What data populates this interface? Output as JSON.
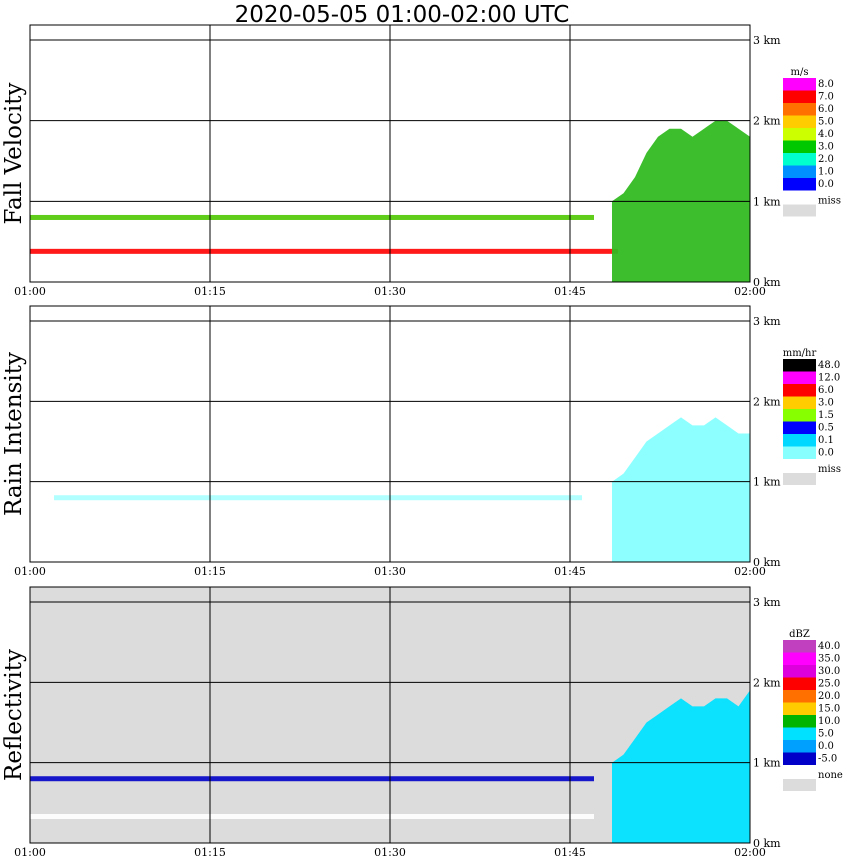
{
  "title": "2020-05-05   01:00-02:00 UTC",
  "x_ticks": [
    "01:00",
    "01:15",
    "01:30",
    "01:45",
    "02:00"
  ],
  "h_ticks": [
    "0 km",
    "1 km",
    "2 km",
    "3 km"
  ],
  "chart_data": [
    {
      "type": "heatmap",
      "ylabel": "Fall Velocity",
      "bg": "#ffffff",
      "legend": {
        "unit": "m/s",
        "labels": [
          "8.0",
          "7.0",
          "6.0",
          "5.0",
          "4.0",
          "3.0",
          "2.0",
          "1.0",
          "0.0"
        ],
        "colors": [
          "#ff00ff",
          "#ff0000",
          "#ff7000",
          "#ffcc00",
          "#ccff00",
          "#00c800",
          "#00ffcc",
          "#0090ff",
          "#0000ff"
        ],
        "miss_label": "miss",
        "miss_color": "#dcdcdc"
      },
      "features": [
        {
          "kind": "line",
          "y_km": 0.38,
          "x_start_min": 0,
          "x_end_min": 49,
          "color": "#ff0000"
        },
        {
          "kind": "line",
          "y_km": 0.8,
          "x_start_min": 0,
          "x_end_min": 47,
          "color": "#4ec800"
        },
        {
          "kind": "echo",
          "top_km": [
            1.0,
            1.1,
            1.3,
            1.6,
            1.8,
            1.9,
            1.9,
            1.8,
            1.9,
            2.0,
            2.0,
            1.9,
            1.8
          ],
          "x_start_min": 48.5,
          "x_end_min": 60,
          "color": "#33bb22"
        }
      ]
    },
    {
      "type": "heatmap",
      "ylabel": "Rain Intensity",
      "bg": "#ffffff",
      "legend": {
        "unit": "mm/hr",
        "labels": [
          "48.0",
          "12.0",
          "6.0",
          "3.0",
          "1.5",
          "0.5",
          "0.1",
          "0.0"
        ],
        "colors": [
          "#000000",
          "#ff00ff",
          "#ff0000",
          "#ffcc00",
          "#88ff00",
          "#0000ff",
          "#00d8ff",
          "#88ffff"
        ],
        "miss_label": "miss",
        "miss_color": "#dcdcdc"
      },
      "features": [
        {
          "kind": "line",
          "y_km": 0.8,
          "x_start_min": 2,
          "x_end_min": 46,
          "color": "#aaffff"
        },
        {
          "kind": "echo",
          "top_km": [
            1.0,
            1.1,
            1.3,
            1.5,
            1.6,
            1.7,
            1.8,
            1.7,
            1.7,
            1.8,
            1.7,
            1.6,
            1.6
          ],
          "x_start_min": 48.5,
          "x_end_min": 60,
          "color": "#88ffff"
        }
      ]
    },
    {
      "type": "heatmap",
      "ylabel": "Reflectivity",
      "bg": "#dcdcdc",
      "legend": {
        "unit": "dBZ",
        "labels": [
          "40.0",
          "35.0",
          "30.0",
          "25.0",
          "20.0",
          "15.0",
          "10.0",
          "5.0",
          "0.0",
          "-5.0"
        ],
        "colors": [
          "#c040c0",
          "#ff00ff",
          "#dd00dd",
          "#ff0000",
          "#ff7000",
          "#ffcc00",
          "#00b400",
          "#00e0ff",
          "#00a0ff",
          "#0000c8"
        ],
        "miss_label": "none",
        "miss_color": "#dcdcdc"
      },
      "features": [
        {
          "kind": "line",
          "y_km": 0.33,
          "x_start_min": 0,
          "x_end_min": 47,
          "color": "#ffffff"
        },
        {
          "kind": "line",
          "y_km": 0.8,
          "x_start_min": 0,
          "x_end_min": 47,
          "color": "#0000c8"
        },
        {
          "kind": "echo",
          "top_km": [
            1.0,
            1.1,
            1.3,
            1.5,
            1.6,
            1.7,
            1.8,
            1.7,
            1.7,
            1.8,
            1.8,
            1.7,
            1.9
          ],
          "x_start_min": 48.5,
          "x_end_min": 60,
          "color": "#00e0ff"
        }
      ]
    }
  ]
}
